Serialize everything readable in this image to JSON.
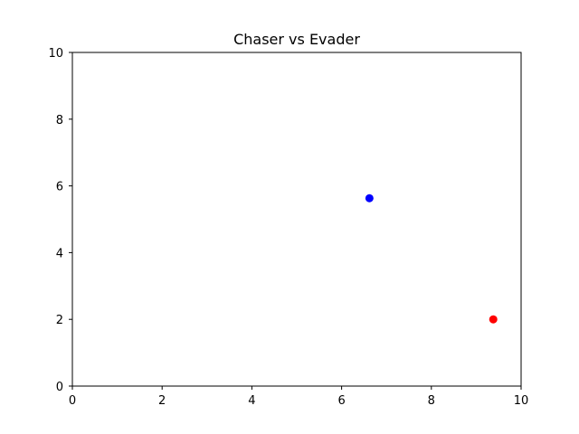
{
  "chart_data": {
    "type": "scatter",
    "title": "Chaser vs Evader",
    "xlabel": "",
    "ylabel": "",
    "xlim": [
      0,
      10
    ],
    "ylim": [
      0,
      10
    ],
    "xticks": [
      0,
      2,
      4,
      6,
      8,
      10
    ],
    "yticks": [
      0,
      2,
      4,
      6,
      8,
      10
    ],
    "grid": false,
    "series": [
      {
        "color": "#0000ff",
        "points": [
          {
            "x": 6.62,
            "y": 5.63
          }
        ]
      },
      {
        "color": "#ff0000",
        "points": [
          {
            "x": 9.38,
            "y": 2.0
          }
        ]
      }
    ]
  }
}
